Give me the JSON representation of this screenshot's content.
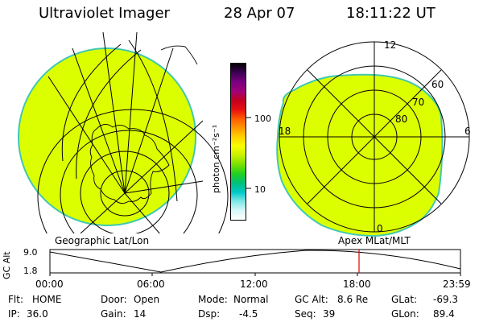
{
  "header": {
    "instrument": "Ultraviolet Imager",
    "date": "28 Apr 07",
    "time": "18:11:22 UT"
  },
  "colorbar": {
    "unit_label": "photon cm⁻²s⁻¹",
    "ticks": [
      "100",
      "10"
    ],
    "colors": [
      "#000000",
      "#3d0055",
      "#7a0080",
      "#a0007a",
      "#c40020",
      "#e61010",
      "#ff5a00",
      "#ff9600",
      "#ffd200",
      "#f6ff00",
      "#c8f000",
      "#78e000",
      "#20d020",
      "#00c07a",
      "#00c8c8",
      "#80e8e8",
      "#d8f8f8",
      "#ffffff"
    ]
  },
  "left_map": {
    "caption": "Geographic Lat/Lon",
    "fill_color": "#dcff00",
    "edge_color": "#40c8b0"
  },
  "right_map": {
    "caption": "Apex MLat/MLT",
    "fill_color": "#dcff00",
    "edge_color": "#40c8b0",
    "labels": {
      "mlt_top": "12",
      "mlt_left": "18",
      "mlt_right": "6",
      "mlt_bottom": "0",
      "lat_60": "60",
      "lat_70": "70",
      "lat_80": "80"
    }
  },
  "altitude_plot": {
    "ylabel": "GC Alt",
    "yticks": [
      "9.0",
      "1.8"
    ],
    "xticks": [
      "00:00",
      "06:00",
      "12:00",
      "18:00",
      "23:59"
    ],
    "marker_color": "#e00000"
  },
  "status": {
    "filter_label": "Flt:",
    "filter_value": "HOME",
    "door_label": "Door:",
    "door_value": "Open",
    "mode_label": "Mode:",
    "mode_value": "Normal",
    "gcalt_label": "GC Alt:",
    "gcalt_value": "8.6 Re",
    "glat_label": "GLat:",
    "glat_value": "-69.3",
    "ip_label": "IP:",
    "ip_value": "36.0",
    "gain_label": "Gain:",
    "gain_value": "14",
    "dsp_label": "Dsp:",
    "dsp_value": "-4.5",
    "seq_label": "Seq:",
    "seq_value": "39",
    "glon_label": "GLon:",
    "glon_value": "89.4"
  }
}
